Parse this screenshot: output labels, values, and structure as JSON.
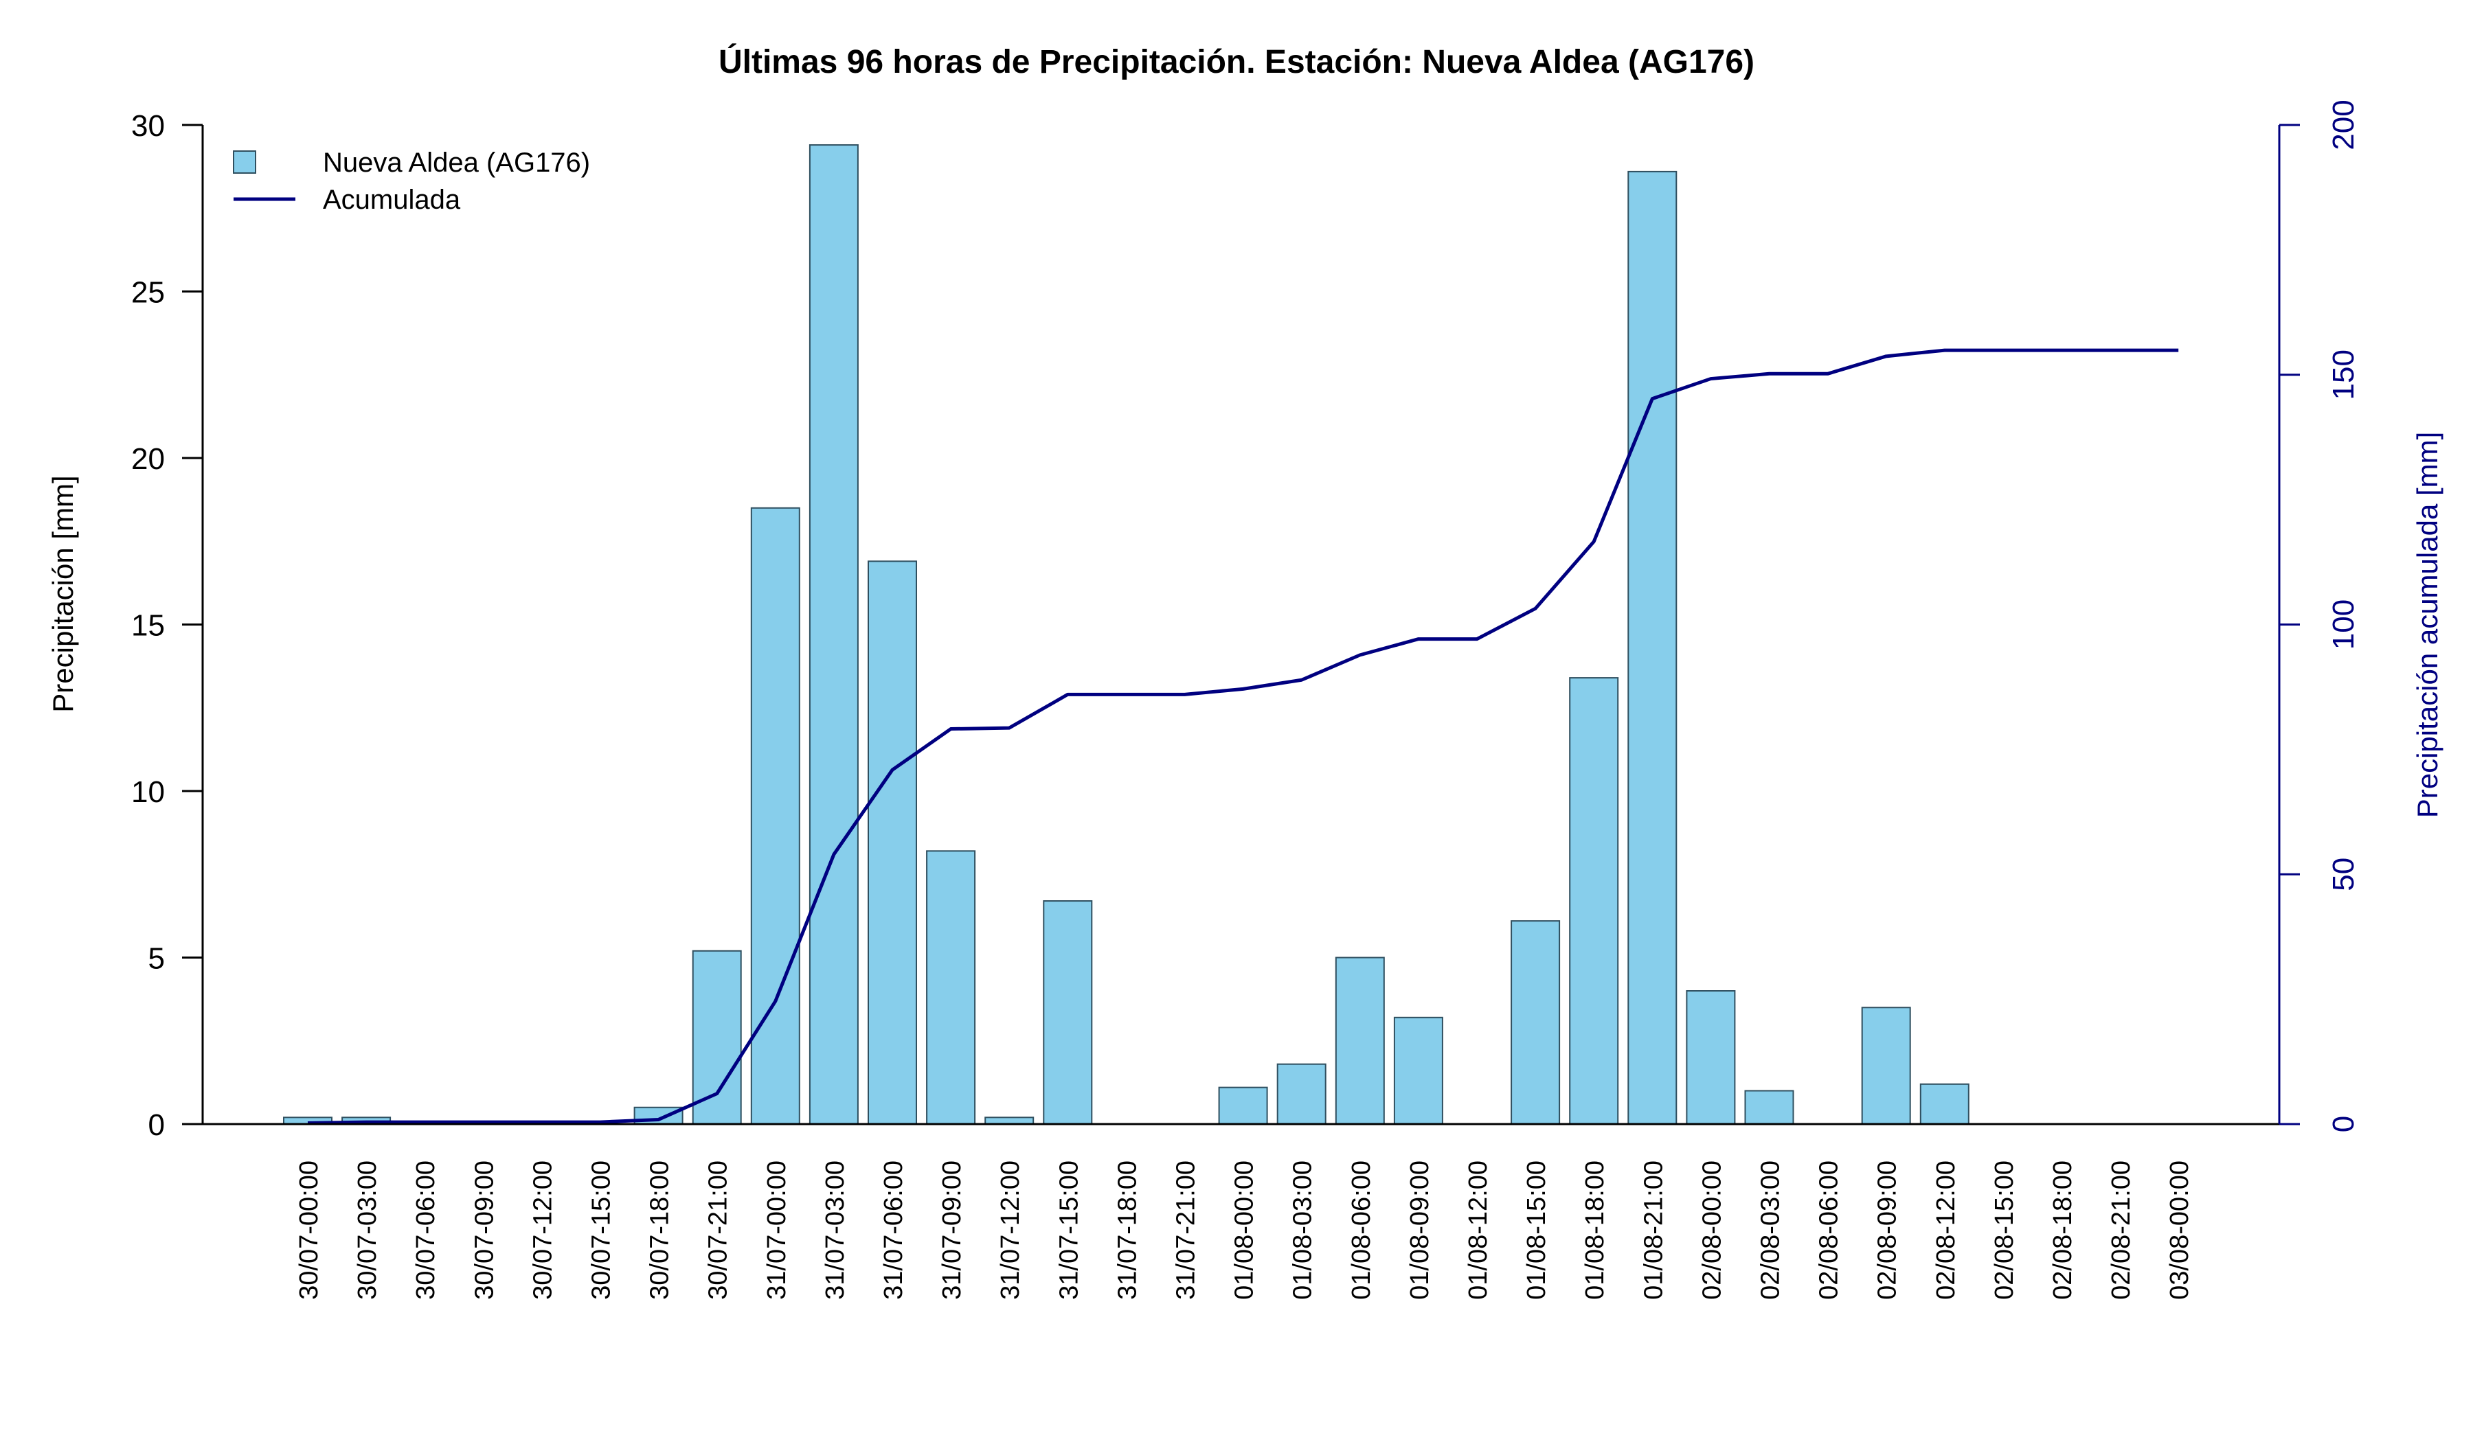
{
  "chart_data": {
    "type": "bar",
    "title": "Últimas 96 horas de Precipitación. Estación: Nueva Aldea (AG176)",
    "ylabel": "Precipitación [mm]",
    "y2label": "Precipitación acumulada [mm]",
    "ylim": [
      0,
      30
    ],
    "y2lim": [
      0,
      200
    ],
    "yticks": [
      "0",
      "5",
      "10",
      "15",
      "20",
      "25",
      "30"
    ],
    "y2ticks": [
      "0",
      "50",
      "100",
      "150",
      "200"
    ],
    "grid": false,
    "legend_position": "top-left",
    "colors": {
      "bar_fill": "#87CEEB",
      "bar_stroke": "#2F4F5F",
      "line": "#000080",
      "axis": "#000000",
      "axis2": "#000080"
    },
    "categories": [
      "30/07-00:00",
      "30/07-03:00",
      "30/07-06:00",
      "30/07-09:00",
      "30/07-12:00",
      "30/07-15:00",
      "30/07-18:00",
      "30/07-21:00",
      "31/07-00:00",
      "31/07-03:00",
      "31/07-06:00",
      "31/07-09:00",
      "31/07-12:00",
      "31/07-15:00",
      "31/07-18:00",
      "31/07-21:00",
      "01/08-00:00",
      "01/08-03:00",
      "01/08-06:00",
      "01/08-09:00",
      "01/08-12:00",
      "01/08-15:00",
      "01/08-18:00",
      "01/08-21:00",
      "02/08-00:00",
      "02/08-03:00",
      "02/08-06:00",
      "02/08-09:00",
      "02/08-12:00",
      "02/08-15:00",
      "02/08-18:00",
      "02/08-21:00",
      "03/08-00:00"
    ],
    "series": [
      {
        "name": "Nueva Aldea (AG176)",
        "type": "bar",
        "axis": "left",
        "values": [
          0.2,
          0.2,
          0,
          0,
          0,
          0,
          0.5,
          5.2,
          18.5,
          29.4,
          16.9,
          8.2,
          0.2,
          6.7,
          0,
          0,
          1.1,
          1.8,
          5.0,
          3.2,
          0,
          6.1,
          13.4,
          28.6,
          4.0,
          1.0,
          0,
          3.5,
          1.2,
          0,
          0,
          0,
          0
        ]
      },
      {
        "name": "Acumulada",
        "type": "line",
        "axis": "right",
        "values": [
          0.2,
          0.4,
          0.4,
          0.4,
          0.4,
          0.4,
          0.9,
          6.1,
          24.6,
          54.0,
          70.9,
          79.1,
          79.3,
          86.0,
          86.0,
          86.0,
          87.1,
          88.9,
          93.9,
          97.1,
          97.1,
          103.2,
          116.6,
          145.2,
          149.2,
          150.2,
          150.2,
          153.7,
          154.9,
          154.9,
          154.9,
          154.9,
          154.9
        ]
      }
    ]
  }
}
